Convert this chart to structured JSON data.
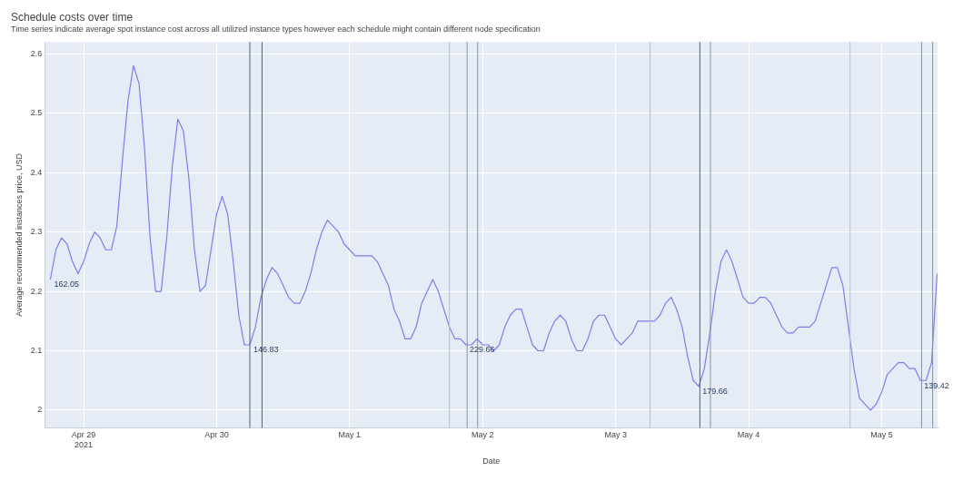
{
  "chart_data": {
    "type": "line",
    "title": "Schedule costs over time",
    "subtitle": "Time series indicate average spot instance cost across all utilized instance types however each schedule might contain different node specification",
    "xlabel": "Date",
    "ylabel": "Average recommended instances price, USD",
    "x": [
      "2021-04-28T18:00",
      "2021-04-28T19:00",
      "2021-04-28T20:00",
      "2021-04-28T21:00",
      "2021-04-28T22:00",
      "2021-04-28T23:00",
      "2021-04-29T00:00",
      "2021-04-29T01:00",
      "2021-04-29T02:00",
      "2021-04-29T03:00",
      "2021-04-29T04:00",
      "2021-04-29T05:00",
      "2021-04-29T06:00",
      "2021-04-29T07:00",
      "2021-04-29T08:00",
      "2021-04-29T09:00",
      "2021-04-29T10:00",
      "2021-04-29T11:00",
      "2021-04-29T12:00",
      "2021-04-29T13:00",
      "2021-04-29T14:00",
      "2021-04-29T15:00",
      "2021-04-29T16:00",
      "2021-04-29T17:00",
      "2021-04-29T18:00",
      "2021-04-29T19:00",
      "2021-04-29T20:00",
      "2021-04-29T21:00",
      "2021-04-29T22:00",
      "2021-04-29T23:00",
      "2021-04-30T00:00",
      "2021-04-30T01:00",
      "2021-04-30T02:00",
      "2021-04-30T03:00",
      "2021-04-30T04:00",
      "2021-04-30T05:00",
      "2021-04-30T06:00",
      "2021-04-30T07:00",
      "2021-04-30T08:00",
      "2021-04-30T09:00",
      "2021-04-30T10:00",
      "2021-04-30T11:00",
      "2021-04-30T12:00",
      "2021-04-30T13:00",
      "2021-04-30T14:00",
      "2021-04-30T15:00",
      "2021-04-30T16:00",
      "2021-04-30T17:00",
      "2021-04-30T18:00",
      "2021-04-30T19:00",
      "2021-04-30T20:00",
      "2021-04-30T21:00",
      "2021-04-30T22:00",
      "2021-04-30T23:00",
      "2021-05-01T00:00",
      "2021-05-01T01:00",
      "2021-05-01T02:00",
      "2021-05-01T03:00",
      "2021-05-01T04:00",
      "2021-05-01T05:00",
      "2021-05-01T06:00",
      "2021-05-01T07:00",
      "2021-05-01T08:00",
      "2021-05-01T09:00",
      "2021-05-01T10:00",
      "2021-05-01T11:00",
      "2021-05-01T12:00",
      "2021-05-01T13:00",
      "2021-05-01T14:00",
      "2021-05-01T15:00",
      "2021-05-01T16:00",
      "2021-05-01T17:00",
      "2021-05-01T18:00",
      "2021-05-01T19:00",
      "2021-05-01T20:00",
      "2021-05-01T21:00",
      "2021-05-01T22:00",
      "2021-05-01T23:00",
      "2021-05-02T00:00",
      "2021-05-02T01:00",
      "2021-05-02T02:00",
      "2021-05-02T03:00",
      "2021-05-02T04:00",
      "2021-05-02T05:00",
      "2021-05-02T06:00",
      "2021-05-02T07:00",
      "2021-05-02T08:00",
      "2021-05-02T09:00",
      "2021-05-02T10:00",
      "2021-05-02T11:00",
      "2021-05-02T12:00",
      "2021-05-02T13:00",
      "2021-05-02T14:00",
      "2021-05-02T15:00",
      "2021-05-02T16:00",
      "2021-05-02T17:00",
      "2021-05-02T18:00",
      "2021-05-02T19:00",
      "2021-05-02T20:00",
      "2021-05-02T21:00",
      "2021-05-02T22:00",
      "2021-05-02T23:00",
      "2021-05-03T00:00",
      "2021-05-03T01:00",
      "2021-05-03T02:00",
      "2021-05-03T03:00",
      "2021-05-03T04:00",
      "2021-05-03T05:00",
      "2021-05-03T06:00",
      "2021-05-03T07:00",
      "2021-05-03T08:00",
      "2021-05-03T09:00",
      "2021-05-03T10:00",
      "2021-05-03T11:00",
      "2021-05-03T12:00",
      "2021-05-03T13:00",
      "2021-05-03T14:00",
      "2021-05-03T15:00",
      "2021-05-03T16:00",
      "2021-05-03T17:00",
      "2021-05-03T18:00",
      "2021-05-03T19:00",
      "2021-05-03T20:00",
      "2021-05-03T21:00",
      "2021-05-03T22:00",
      "2021-05-03T23:00",
      "2021-05-04T00:00",
      "2021-05-04T01:00",
      "2021-05-04T02:00",
      "2021-05-04T03:00",
      "2021-05-04T04:00",
      "2021-05-04T05:00",
      "2021-05-04T06:00",
      "2021-05-04T07:00",
      "2021-05-04T08:00",
      "2021-05-04T09:00",
      "2021-05-04T10:00",
      "2021-05-04T11:00",
      "2021-05-04T12:00",
      "2021-05-04T13:00",
      "2021-05-04T14:00",
      "2021-05-04T15:00",
      "2021-05-04T16:00",
      "2021-05-04T17:00",
      "2021-05-04T18:00",
      "2021-05-04T19:00",
      "2021-05-04T20:00",
      "2021-05-04T21:00",
      "2021-05-04T22:00",
      "2021-05-04T23:00",
      "2021-05-05T00:00",
      "2021-05-05T01:00",
      "2021-05-05T02:00",
      "2021-05-05T03:00",
      "2021-05-05T04:00",
      "2021-05-05T05:00",
      "2021-05-05T06:00",
      "2021-05-05T07:00",
      "2021-05-05T08:00",
      "2021-05-05T09:00",
      "2021-05-05T10:00"
    ],
    "series": [
      {
        "color": "#7b7fea",
        "values": [
          2.22,
          2.27,
          2.29,
          2.28,
          2.25,
          2.23,
          2.25,
          2.28,
          2.3,
          2.29,
          2.27,
          2.27,
          2.31,
          2.42,
          2.52,
          2.58,
          2.55,
          2.44,
          2.29,
          2.2,
          2.2,
          2.29,
          2.41,
          2.49,
          2.47,
          2.39,
          2.27,
          2.2,
          2.21,
          2.27,
          2.33,
          2.36,
          2.33,
          2.25,
          2.16,
          2.11,
          2.11,
          2.14,
          2.19,
          2.22,
          2.24,
          2.23,
          2.21,
          2.19,
          2.18,
          2.18,
          2.2,
          2.23,
          2.27,
          2.3,
          2.32,
          2.31,
          2.3,
          2.28,
          2.27,
          2.26,
          2.26,
          2.26,
          2.26,
          2.25,
          2.23,
          2.21,
          2.17,
          2.15,
          2.12,
          2.12,
          2.14,
          2.18,
          2.2,
          2.22,
          2.2,
          2.17,
          2.14,
          2.12,
          2.12,
          2.11,
          2.11,
          2.12,
          2.11,
          2.11,
          2.1,
          2.11,
          2.14,
          2.16,
          2.17,
          2.17,
          2.14,
          2.11,
          2.1,
          2.1,
          2.13,
          2.15,
          2.16,
          2.15,
          2.12,
          2.1,
          2.1,
          2.12,
          2.15,
          2.16,
          2.16,
          2.14,
          2.12,
          2.11,
          2.12,
          2.13,
          2.15,
          2.15,
          2.15,
          2.15,
          2.16,
          2.18,
          2.19,
          2.17,
          2.14,
          2.09,
          2.05,
          2.04,
          2.07,
          2.13,
          2.2,
          2.25,
          2.27,
          2.25,
          2.22,
          2.19,
          2.18,
          2.18,
          2.19,
          2.19,
          2.18,
          2.16,
          2.14,
          2.13,
          2.13,
          2.14,
          2.14,
          2.14,
          2.15,
          2.18,
          2.21,
          2.24,
          2.24,
          2.21,
          2.14,
          2.07,
          2.02,
          2.01,
          2.0,
          2.01,
          2.03,
          2.06,
          2.07,
          2.08,
          2.08,
          2.07,
          2.07,
          2.05,
          2.05,
          2.08,
          2.23
        ]
      }
    ],
    "xlim": [
      "2021-04-28T17:00",
      "2021-05-05T10:05"
    ],
    "xticks": [
      {
        "value": "2021-04-29",
        "label": "Apr 29\n2021"
      },
      {
        "value": "2021-04-30",
        "label": "Apr 30"
      },
      {
        "value": "2021-05-01",
        "label": "May 1"
      },
      {
        "value": "2021-05-02",
        "label": "May 2"
      },
      {
        "value": "2021-05-03",
        "label": "May 3"
      },
      {
        "value": "2021-05-04",
        "label": "May 4"
      },
      {
        "value": "2021-05-05",
        "label": "May 5"
      }
    ],
    "ylim": [
      1.97,
      2.62
    ],
    "yticks": [
      2,
      2.1,
      2.2,
      2.3,
      2.4,
      2.5,
      2.6
    ],
    "grid": true,
    "ref_lines": [
      {
        "axis": "x",
        "value": "2021-04-30T06:00",
        "color": "#5a6070"
      },
      {
        "axis": "x",
        "value": "2021-04-30T08:12",
        "color": "#5a6070"
      },
      {
        "axis": "x",
        "value": "2021-05-01T18:00",
        "color": "#b8bfcc"
      },
      {
        "axis": "x",
        "value": "2021-05-01T21:12",
        "color": "#8a90a0"
      },
      {
        "axis": "x",
        "value": "2021-05-01T23:06",
        "color": "#8a90a0"
      },
      {
        "axis": "x",
        "value": "2021-05-03T06:12",
        "color": "#b8bfcc"
      },
      {
        "axis": "x",
        "value": "2021-05-03T15:12",
        "color": "#5a6070"
      },
      {
        "axis": "x",
        "value": "2021-05-03T17:06",
        "color": "#8a90a0"
      },
      {
        "axis": "x",
        "value": "2021-05-04T18:18",
        "color": "#b8bfcc"
      },
      {
        "axis": "x",
        "value": "2021-05-05T07:12",
        "color": "#8a90a0"
      },
      {
        "axis": "x",
        "value": "2021-05-05T09:12",
        "color": "#8a90a0"
      }
    ],
    "annotations": [
      {
        "text": "162.05",
        "x": "2021-04-28T18:00",
        "y": 2.22
      },
      {
        "text": "146.83",
        "x": "2021-04-30T06:00",
        "y": 2.11
      },
      {
        "text": "229.66",
        "x": "2021-05-01T21:00",
        "y": 2.11
      },
      {
        "text": "179.66",
        "x": "2021-05-03T15:00",
        "y": 2.04
      },
      {
        "text": "139.42",
        "x": "2021-05-05T07:00",
        "y": 2.05
      }
    ]
  }
}
